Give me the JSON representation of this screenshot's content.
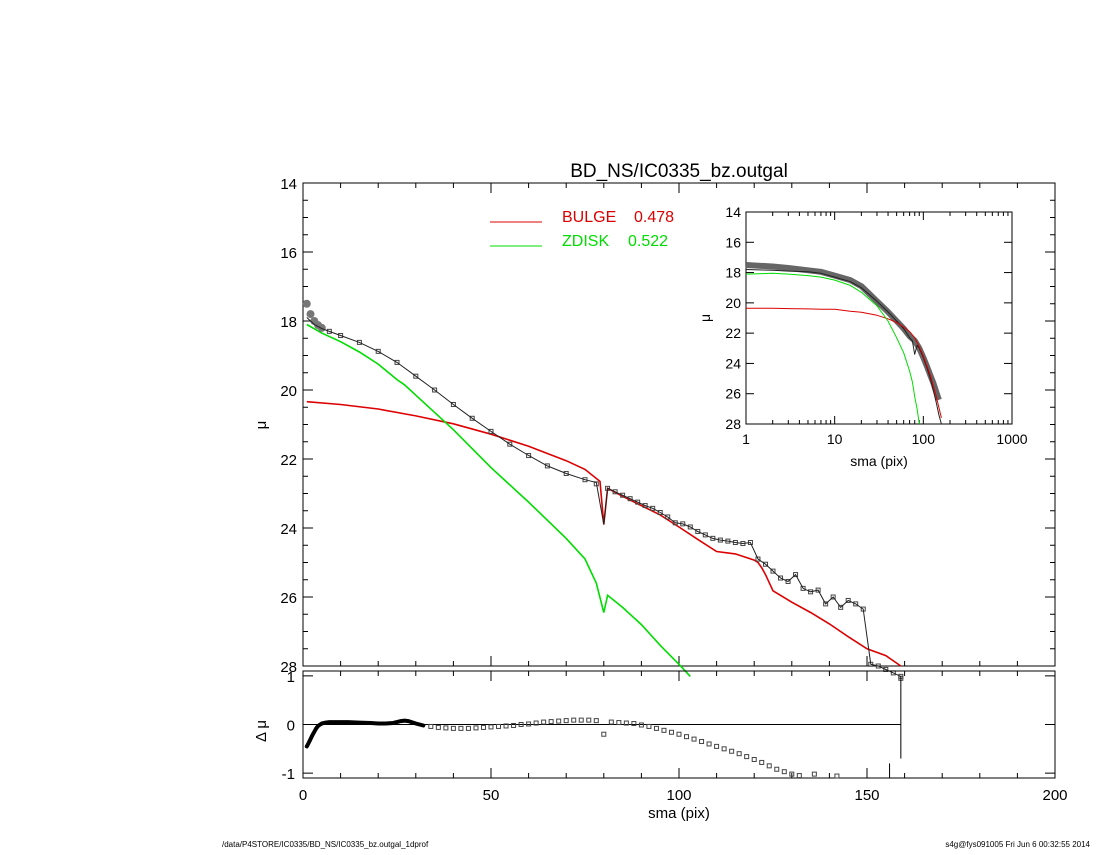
{
  "chart_data": [
    {
      "id": "main",
      "type": "line",
      "title": "BD_NS/IC0335_bz.outgal",
      "ylabel": "μ",
      "xlim": [
        0,
        200
      ],
      "ylim": [
        28,
        14
      ],
      "y_inverted": true,
      "yticks": [
        "14",
        "16",
        "18",
        "20",
        "22",
        "24",
        "26",
        "28"
      ],
      "legend_placement": "top-center",
      "legend": [
        {
          "label": "BULGE",
          "value": "0.478",
          "color": "#dd0000"
        },
        {
          "label": "ZDISK",
          "value": "0.522",
          "color": "#00dd00"
        }
      ],
      "series": [
        {
          "key": "bulge",
          "color": "#dd0000",
          "style": "line",
          "x": [
            1,
            10,
            20,
            30,
            40,
            50,
            60,
            70,
            75,
            79,
            80,
            81,
            85,
            90,
            95,
            100,
            105,
            110,
            115,
            120,
            121,
            122,
            123,
            125,
            130,
            135,
            140,
            145,
            150,
            155,
            159
          ],
          "y": [
            20.34,
            20.42,
            20.55,
            20.75,
            20.98,
            21.28,
            21.63,
            22.05,
            22.3,
            22.65,
            23.9,
            22.85,
            23.08,
            23.35,
            23.62,
            23.97,
            24.33,
            24.68,
            24.75,
            24.93,
            25.0,
            25.15,
            25.35,
            25.82,
            26.15,
            26.45,
            26.78,
            27.15,
            27.5,
            27.7,
            28.0
          ]
        },
        {
          "key": "zdisk",
          "color": "#00dd00",
          "style": "line",
          "x": [
            1,
            5,
            10,
            15,
            20,
            25,
            27,
            30,
            40,
            50,
            60,
            70,
            75,
            78,
            80,
            81,
            85,
            90,
            95,
            100,
            103
          ],
          "y": [
            18.1,
            18.35,
            18.6,
            18.9,
            19.25,
            19.7,
            19.85,
            20.15,
            21.15,
            22.25,
            23.25,
            24.3,
            24.9,
            25.6,
            26.45,
            25.95,
            26.3,
            26.8,
            27.4,
            27.95,
            28.3
          ]
        },
        {
          "key": "observed",
          "color": "#555555",
          "style": "markers",
          "x": [
            1,
            2,
            3,
            4,
            5,
            7,
            10,
            15,
            20,
            25,
            30,
            35,
            40,
            45,
            50,
            55,
            60,
            65,
            70,
            75,
            78,
            81,
            83,
            85,
            87,
            89,
            91,
            93,
            95,
            97,
            99,
            101,
            103,
            105,
            107,
            109,
            111,
            113,
            115,
            117,
            119,
            121,
            123,
            125,
            127,
            129,
            131,
            133,
            135,
            137,
            139,
            141,
            143,
            145,
            147,
            149,
            151,
            153,
            155,
            157,
            159
          ],
          "y": [
            17.5,
            17.8,
            18.0,
            18.12,
            18.2,
            18.3,
            18.42,
            18.62,
            18.88,
            19.2,
            19.6,
            20.0,
            20.42,
            20.82,
            21.2,
            21.57,
            21.9,
            22.2,
            22.42,
            22.6,
            22.72,
            22.85,
            22.95,
            23.05,
            23.15,
            23.25,
            23.35,
            23.43,
            23.55,
            23.68,
            23.85,
            23.88,
            23.97,
            24.1,
            24.2,
            24.3,
            24.35,
            24.38,
            24.42,
            24.45,
            24.42,
            24.9,
            25.05,
            25.25,
            25.45,
            25.55,
            25.35,
            25.75,
            25.85,
            25.8,
            26.2,
            26.0,
            26.3,
            26.1,
            26.2,
            26.35,
            27.95,
            28.0,
            28.1,
            28.2,
            28.3
          ]
        },
        {
          "key": "model_total",
          "color": "#222222",
          "style": "line",
          "x": [
            1,
            2,
            3,
            5,
            7,
            10,
            15,
            20,
            25,
            30,
            35,
            40,
            45,
            50,
            55,
            60,
            65,
            70,
            75,
            78,
            80,
            81,
            83,
            85,
            87,
            89,
            91,
            93,
            95,
            97,
            99,
            101,
            103,
            105,
            107,
            109,
            111,
            113,
            115,
            117,
            119,
            121,
            123,
            125,
            127,
            129,
            131,
            133,
            135,
            137,
            139,
            141,
            143,
            145,
            147,
            149,
            151,
            153,
            155,
            157,
            159
          ],
          "y": [
            17.9,
            18.0,
            18.1,
            18.22,
            18.3,
            18.42,
            18.62,
            18.88,
            19.2,
            19.6,
            20.0,
            20.42,
            20.82,
            21.2,
            21.57,
            21.9,
            22.2,
            22.42,
            22.6,
            22.68,
            23.9,
            22.85,
            22.95,
            23.05,
            23.15,
            23.25,
            23.35,
            23.43,
            23.55,
            23.68,
            23.85,
            23.88,
            23.97,
            24.1,
            24.2,
            24.3,
            24.35,
            24.38,
            24.42,
            24.45,
            24.42,
            24.9,
            25.05,
            25.25,
            25.45,
            25.55,
            25.35,
            25.75,
            25.85,
            25.8,
            26.2,
            26.0,
            26.3,
            26.1,
            26.2,
            26.35,
            27.95,
            28.0,
            28.1,
            28.2,
            28.3
          ]
        }
      ]
    },
    {
      "id": "residual",
      "type": "scatter",
      "xlabel": "sma (pix)",
      "ylabel": "Δ μ",
      "xlim": [
        0,
        200
      ],
      "ylim": [
        -1.1,
        1.1
      ],
      "xticks": [
        "0",
        "50",
        "100",
        "150",
        "200"
      ],
      "yticks": [
        "1",
        "0",
        "-1"
      ],
      "zero_line": true,
      "series": [
        {
          "key": "delta_dense",
          "color": "#000000",
          "style": "line",
          "x": [
            1,
            1.5,
            2,
            2.5,
            3,
            3.5,
            4,
            5,
            6,
            7,
            8,
            10,
            12,
            15,
            18,
            20,
            22,
            24,
            26,
            27,
            28,
            30,
            32
          ],
          "y": [
            -0.45,
            -0.38,
            -0.3,
            -0.22,
            -0.15,
            -0.08,
            -0.03,
            0.02,
            0.04,
            0.05,
            0.05,
            0.05,
            0.05,
            0.04,
            0.03,
            0.02,
            0.02,
            0.03,
            0.07,
            0.08,
            0.07,
            0.02,
            -0.02
          ]
        },
        {
          "key": "delta_points",
          "color": "#555555",
          "style": "markers",
          "x": [
            34,
            36,
            38,
            40,
            42,
            44,
            46,
            48,
            50,
            52,
            54,
            56,
            58,
            60,
            62,
            64,
            66,
            68,
            70,
            72,
            74,
            76,
            78,
            80,
            82,
            84,
            86,
            88,
            90,
            92,
            94,
            96,
            98,
            100,
            102,
            104,
            106,
            108,
            110,
            112,
            114,
            116,
            118,
            120,
            122,
            124,
            126,
            128,
            130,
            132,
            136,
            142,
            159
          ],
          "y": [
            -0.04,
            -0.06,
            -0.07,
            -0.08,
            -0.08,
            -0.08,
            -0.07,
            -0.06,
            -0.05,
            -0.04,
            -0.03,
            -0.02,
            0.0,
            0.01,
            0.03,
            0.05,
            0.06,
            0.07,
            0.08,
            0.09,
            0.09,
            0.09,
            0.08,
            -0.2,
            0.05,
            0.04,
            0.03,
            0.02,
            -0.01,
            -0.04,
            -0.08,
            -0.12,
            -0.16,
            -0.2,
            -0.25,
            -0.3,
            -0.35,
            -0.4,
            -0.45,
            -0.5,
            -0.55,
            -0.6,
            -0.66,
            -0.72,
            -0.78,
            -0.85,
            -0.92,
            -0.97,
            -1.02,
            -1.05,
            -1.02,
            -1.06,
            0.95
          ]
        },
        {
          "key": "errorbars",
          "color": "#000000",
          "style": "vlines",
          "x": [
            159,
            156
          ],
          "ylow": [
            -0.7,
            -1.1
          ],
          "yhigh": [
            1.0,
            -0.8
          ]
        }
      ]
    },
    {
      "id": "inset",
      "type": "line",
      "xlabel": "sma (pix)",
      "ylabel": "μ",
      "x_scale": "log",
      "xlim": [
        1,
        1000
      ],
      "ylim": [
        28,
        14
      ],
      "y_inverted": true,
      "xticks": [
        "1",
        "10",
        "100",
        "1000"
      ],
      "yticks": [
        "14",
        "16",
        "18",
        "20",
        "22",
        "24",
        "26",
        "28"
      ],
      "series": [
        {
          "key": "inset_observed",
          "color": "#666666",
          "style": "thickline",
          "x": [
            1,
            2,
            3,
            5,
            7,
            10,
            15,
            20,
            30,
            40,
            50,
            60,
            70,
            80,
            90,
            100,
            110,
            120,
            130,
            140,
            150
          ],
          "y": [
            17.5,
            17.6,
            17.7,
            17.85,
            17.95,
            18.2,
            18.5,
            18.9,
            19.9,
            20.6,
            21.2,
            21.7,
            22.2,
            22.5,
            23.0,
            23.6,
            24.2,
            24.8,
            25.3,
            25.9,
            26.4
          ]
        },
        {
          "key": "inset_model",
          "color": "#222222",
          "style": "line",
          "x": [
            1,
            2,
            3,
            5,
            7,
            10,
            15,
            20,
            30,
            40,
            50,
            60,
            70,
            75,
            80,
            85,
            90,
            100,
            110,
            120,
            130,
            140,
            150,
            160
          ],
          "y": [
            17.8,
            17.85,
            17.9,
            17.95,
            18.05,
            18.3,
            18.6,
            19.0,
            19.9,
            20.6,
            21.2,
            21.7,
            22.3,
            22.5,
            23.4,
            22.8,
            23.0,
            23.6,
            24.3,
            25.0,
            25.8,
            26.6,
            27.4,
            28.0
          ]
        },
        {
          "key": "inset_bulge",
          "color": "#dd0000",
          "style": "line",
          "x": [
            1,
            2,
            3,
            5,
            7,
            10,
            15,
            20,
            30,
            40,
            50,
            60,
            70,
            80,
            90,
            100,
            120,
            140,
            160
          ],
          "y": [
            20.35,
            20.36,
            20.38,
            20.4,
            20.42,
            20.42,
            20.55,
            20.62,
            20.82,
            21.05,
            21.3,
            21.6,
            21.9,
            22.3,
            22.9,
            23.5,
            24.8,
            26.2,
            27.6
          ]
        },
        {
          "key": "inset_zdisk",
          "color": "#00dd00",
          "style": "line",
          "x": [
            1,
            2,
            3,
            5,
            7,
            10,
            15,
            20,
            30,
            40,
            50,
            60,
            70,
            75,
            78,
            80,
            85,
            90
          ],
          "y": [
            18.1,
            18.05,
            18.1,
            18.2,
            18.3,
            18.5,
            18.85,
            19.3,
            20.2,
            21.2,
            22.3,
            23.3,
            24.5,
            25.2,
            25.8,
            26.2,
            27.0,
            28.0
          ]
        }
      ]
    }
  ],
  "footer": {
    "left": "/data/P4STORE/IC0335/BD_NS/IC0335_bz.outgal_1dprof",
    "right": "s4g@fys091005  Fri Jun  6 00:32:55 2014"
  }
}
